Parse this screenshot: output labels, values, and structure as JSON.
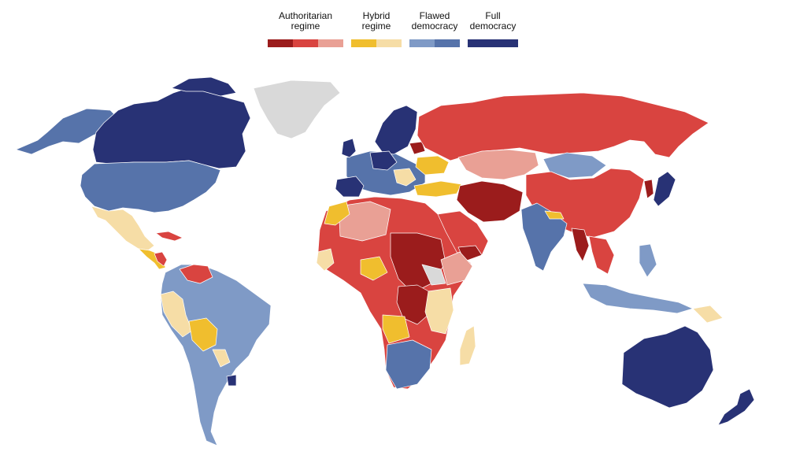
{
  "legend": {
    "groups": [
      {
        "label": "Authoritarian\nregime",
        "colors": [
          "#9b1c1c",
          "#d94440",
          "#e9a095"
        ]
      },
      {
        "label": "Hybrid\nregime",
        "colors": [
          "#f0be2e",
          "#f6dda6"
        ]
      },
      {
        "label": "Flawed\ndemocracy",
        "colors": [
          "#7f9ac6",
          "#5673aa"
        ]
      },
      {
        "label": "Full\ndemocracy",
        "colors": [
          "#283275"
        ]
      }
    ]
  },
  "colors": {
    "auth_dark": "#9b1c1c",
    "auth_mid": "#d94440",
    "auth_light": "#e9a095",
    "hybrid_dark": "#f0be2e",
    "hybrid_light": "#f6dda6",
    "flawed_light": "#7f9ac6",
    "flawed_dark": "#5673aa",
    "full": "#283275",
    "no_data": "#d9d9d9"
  }
}
